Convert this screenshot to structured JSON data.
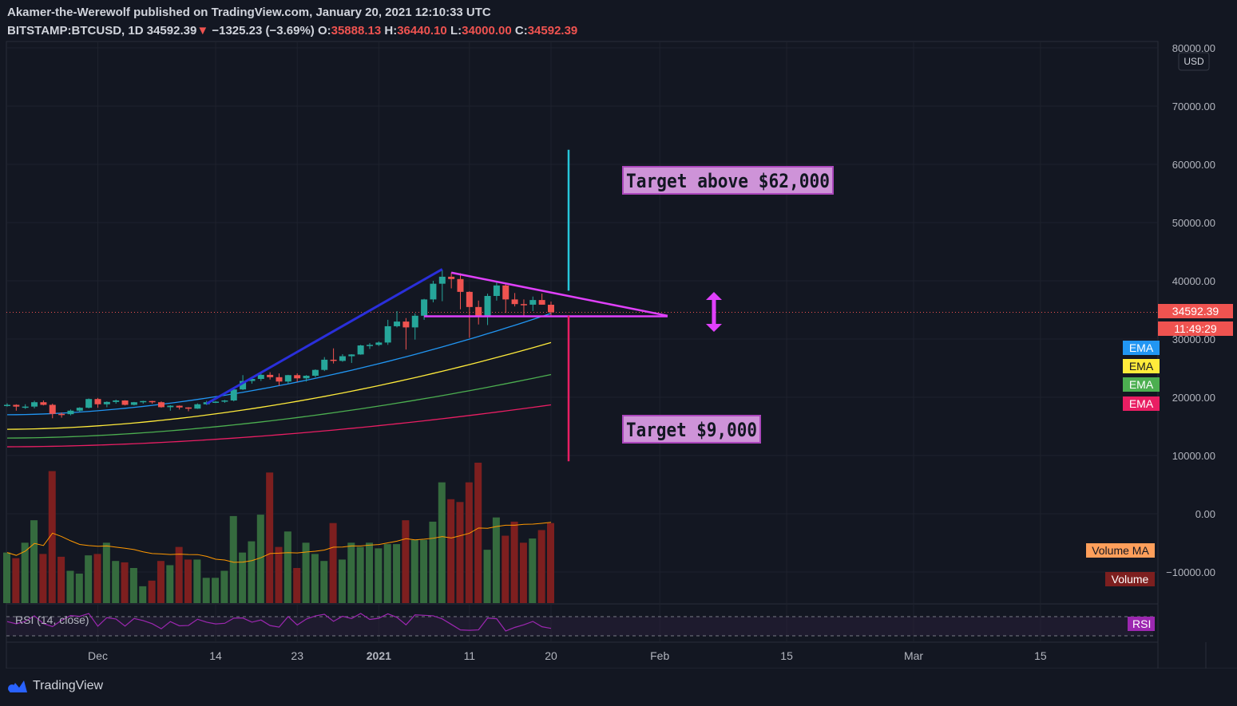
{
  "header": {
    "publisher_line": "Akamer-the-Werewolf published on TradingView.com, January 20, 2021 12:10:33 UTC",
    "symbol": "BITSTAMP:BTCUSD, 1D",
    "last": "34592.39",
    "change_arrow": "▼",
    "change": "−1325.23 (−3.69%)",
    "open_label": "O:",
    "open": "35888.13",
    "high_label": "H:",
    "high": "36440.10",
    "low_label": "L:",
    "low": "34000.00",
    "close_label": "C:",
    "close": "34592.39"
  },
  "price_axis": {
    "currency": "USD",
    "last_price_tag": "34592.39",
    "countdown_tag": "11:49:29",
    "tick_labels": [
      "80000.00",
      "70000.00",
      "60000.00",
      "50000.00",
      "40000.00",
      "30000.00",
      "20000.00",
      "10000.00",
      "0.00",
      "−10000.00"
    ]
  },
  "legend": {
    "ema_labels": [
      "EMA",
      "EMA",
      "EMA",
      "EMA"
    ],
    "volume_ma": "Volume MA",
    "volume": "Volume",
    "rsi_tag": "RSI",
    "rsi_title": "RSI (14, close)"
  },
  "time_axis": {
    "labels": [
      "Dec",
      "14",
      "23",
      "2021",
      "11",
      "20",
      "Feb",
      "15",
      "Mar",
      "15"
    ]
  },
  "annotations": {
    "target_up": "Target above $62,000",
    "target_down": "Target $9,000"
  },
  "colors": {
    "background": "#131722",
    "up": "#26a69a",
    "down": "#ef5350",
    "ema_blue": "#2196f3",
    "ema_yellow": "#ffeb3b",
    "ema_green": "#4caf50",
    "ema_red": "#e91e63",
    "triangle": "#e040fb",
    "annotation_fill": "#ce93d8"
  },
  "footer": {
    "brand": "TradingView"
  },
  "chart_data": {
    "type": "candlestick",
    "title": "BITSTAMP:BTCUSD, 1D",
    "ylabel": "USD",
    "ylim": [
      -10000,
      80000
    ],
    "x_start_date": "2020-11-21",
    "candles": [
      {
        "date": "2020-11-21",
        "o": 18600,
        "h": 18950,
        "l": 18400,
        "c": 18700
      },
      {
        "date": "2020-11-22",
        "o": 18700,
        "h": 18800,
        "l": 17700,
        "c": 18400
      },
      {
        "date": "2020-11-23",
        "o": 18400,
        "h": 18800,
        "l": 18000,
        "c": 18400
      },
      {
        "date": "2020-11-24",
        "o": 18400,
        "h": 19400,
        "l": 18100,
        "c": 19150
      },
      {
        "date": "2020-11-25",
        "o": 19150,
        "h": 19450,
        "l": 18600,
        "c": 18700
      },
      {
        "date": "2020-11-26",
        "o": 18700,
        "h": 18900,
        "l": 16400,
        "c": 17150
      },
      {
        "date": "2020-11-27",
        "o": 17150,
        "h": 17400,
        "l": 16500,
        "c": 17100
      },
      {
        "date": "2020-11-28",
        "o": 17100,
        "h": 17900,
        "l": 16900,
        "c": 17700
      },
      {
        "date": "2020-11-29",
        "o": 17700,
        "h": 18300,
        "l": 17500,
        "c": 18200
      },
      {
        "date": "2020-11-30",
        "o": 18200,
        "h": 19800,
        "l": 18100,
        "c": 19700
      },
      {
        "date": "2020-12-01",
        "o": 19700,
        "h": 19900,
        "l": 18200,
        "c": 18800
      },
      {
        "date": "2020-12-02",
        "o": 18800,
        "h": 19300,
        "l": 18300,
        "c": 19200
      },
      {
        "date": "2020-12-03",
        "o": 19200,
        "h": 19600,
        "l": 18900,
        "c": 19450
      },
      {
        "date": "2020-12-04",
        "o": 19450,
        "h": 19500,
        "l": 18600,
        "c": 18700
      },
      {
        "date": "2020-12-05",
        "o": 18700,
        "h": 19200,
        "l": 18600,
        "c": 19150
      },
      {
        "date": "2020-12-06",
        "o": 19150,
        "h": 19400,
        "l": 18900,
        "c": 19350
      },
      {
        "date": "2020-12-07",
        "o": 19350,
        "h": 19400,
        "l": 18900,
        "c": 19150
      },
      {
        "date": "2020-12-08",
        "o": 19150,
        "h": 19300,
        "l": 18200,
        "c": 18300
      },
      {
        "date": "2020-12-09",
        "o": 18300,
        "h": 18650,
        "l": 17700,
        "c": 18550
      },
      {
        "date": "2020-12-10",
        "o": 18550,
        "h": 18600,
        "l": 17900,
        "c": 18250
      },
      {
        "date": "2020-12-11",
        "o": 18250,
        "h": 18300,
        "l": 17600,
        "c": 18050
      },
      {
        "date": "2020-12-12",
        "o": 18050,
        "h": 18950,
        "l": 18000,
        "c": 18800
      },
      {
        "date": "2020-12-13",
        "o": 18800,
        "h": 19400,
        "l": 18700,
        "c": 19150
      },
      {
        "date": "2020-12-14",
        "o": 19150,
        "h": 19350,
        "l": 19000,
        "c": 19250
      },
      {
        "date": "2020-12-15",
        "o": 19250,
        "h": 19550,
        "l": 19050,
        "c": 19450
      },
      {
        "date": "2020-12-16",
        "o": 19450,
        "h": 21500,
        "l": 19300,
        "c": 21350
      },
      {
        "date": "2020-12-17",
        "o": 21350,
        "h": 23800,
        "l": 21250,
        "c": 22800
      },
      {
        "date": "2020-12-18",
        "o": 22800,
        "h": 23300,
        "l": 22350,
        "c": 23150
      },
      {
        "date": "2020-12-19",
        "o": 23150,
        "h": 24150,
        "l": 22800,
        "c": 23850
      },
      {
        "date": "2020-12-20",
        "o": 23850,
        "h": 24300,
        "l": 23050,
        "c": 23450
      },
      {
        "date": "2020-12-21",
        "o": 23450,
        "h": 24100,
        "l": 22000,
        "c": 22700
      },
      {
        "date": "2020-12-22",
        "o": 22700,
        "h": 23850,
        "l": 22350,
        "c": 23800
      },
      {
        "date": "2020-12-23",
        "o": 23800,
        "h": 24100,
        "l": 22650,
        "c": 23250
      },
      {
        "date": "2020-12-24",
        "o": 23250,
        "h": 23800,
        "l": 22700,
        "c": 23700
      },
      {
        "date": "2020-12-25",
        "o": 23700,
        "h": 24800,
        "l": 23450,
        "c": 24700
      },
      {
        "date": "2020-12-26",
        "o": 24700,
        "h": 26900,
        "l": 24500,
        "c": 26450
      },
      {
        "date": "2020-12-27",
        "o": 26450,
        "h": 28400,
        "l": 25800,
        "c": 26250
      },
      {
        "date": "2020-12-28",
        "o": 26250,
        "h": 27400,
        "l": 26100,
        "c": 27050
      },
      {
        "date": "2020-12-29",
        "o": 27050,
        "h": 27400,
        "l": 25900,
        "c": 27350
      },
      {
        "date": "2020-12-30",
        "o": 27350,
        "h": 29000,
        "l": 27300,
        "c": 28900
      },
      {
        "date": "2020-12-31",
        "o": 28900,
        "h": 29300,
        "l": 28300,
        "c": 29000
      },
      {
        "date": "2021-01-01",
        "o": 29000,
        "h": 29600,
        "l": 28800,
        "c": 29400
      },
      {
        "date": "2021-01-02",
        "o": 29400,
        "h": 33300,
        "l": 29000,
        "c": 32200
      },
      {
        "date": "2021-01-03",
        "o": 32200,
        "h": 34800,
        "l": 32000,
        "c": 33000
      },
      {
        "date": "2021-01-04",
        "o": 33000,
        "h": 33600,
        "l": 28200,
        "c": 32000
      },
      {
        "date": "2021-01-05",
        "o": 32000,
        "h": 34400,
        "l": 29900,
        "c": 34000
      },
      {
        "date": "2021-01-06",
        "o": 34000,
        "h": 36900,
        "l": 33300,
        "c": 36800
      },
      {
        "date": "2021-01-07",
        "o": 36800,
        "h": 40000,
        "l": 36300,
        "c": 39500
      },
      {
        "date": "2021-01-08",
        "o": 39500,
        "h": 41900,
        "l": 36500,
        "c": 40700
      },
      {
        "date": "2021-01-09",
        "o": 40700,
        "h": 41400,
        "l": 38700,
        "c": 40300
      },
      {
        "date": "2021-01-10",
        "o": 40300,
        "h": 41300,
        "l": 35100,
        "c": 38100
      },
      {
        "date": "2021-01-11",
        "o": 38100,
        "h": 38200,
        "l": 30200,
        "c": 35500
      },
      {
        "date": "2021-01-12",
        "o": 35500,
        "h": 36600,
        "l": 32500,
        "c": 34000
      },
      {
        "date": "2021-01-13",
        "o": 34000,
        "h": 37800,
        "l": 32400,
        "c": 37400
      },
      {
        "date": "2021-01-14",
        "o": 37400,
        "h": 39700,
        "l": 36600,
        "c": 39200
      },
      {
        "date": "2021-01-15",
        "o": 39200,
        "h": 39600,
        "l": 34500,
        "c": 36800
      },
      {
        "date": "2021-01-16",
        "o": 36800,
        "h": 37900,
        "l": 35600,
        "c": 36000
      },
      {
        "date": "2021-01-17",
        "o": 36000,
        "h": 36800,
        "l": 33900,
        "c": 35900
      },
      {
        "date": "2021-01-18",
        "o": 35900,
        "h": 37300,
        "l": 34800,
        "c": 36700
      },
      {
        "date": "2021-01-19",
        "o": 36700,
        "h": 37800,
        "l": 35900,
        "c": 35900
      },
      {
        "date": "2021-01-20",
        "o": 35888.13,
        "h": 36440.1,
        "l": 34000.0,
        "c": 34592.39
      }
    ],
    "ema_series": [
      {
        "color": "#2196f3",
        "start": 17000,
        "end": 34400
      },
      {
        "color": "#ffeb3b",
        "start": 14500,
        "end": 29400
      },
      {
        "color": "#4caf50",
        "start": 13000,
        "end": 23900
      },
      {
        "color": "#e91e63",
        "start": 11500,
        "end": 18700
      }
    ],
    "volume_relative": [
      0.36,
      0.32,
      0.43,
      0.59,
      0.35,
      0.94,
      0.33,
      0.23,
      0.21,
      0.34,
      0.35,
      0.43,
      0.3,
      0.29,
      0.25,
      0.12,
      0.16,
      0.3,
      0.27,
      0.4,
      0.31,
      0.31,
      0.18,
      0.18,
      0.23,
      0.62,
      0.36,
      0.44,
      0.63,
      0.93,
      0.4,
      0.51,
      0.25,
      0.43,
      0.35,
      0.3,
      0.57,
      0.31,
      0.43,
      0.4,
      0.43,
      0.39,
      0.42,
      0.42,
      0.59,
      0.45,
      0.45,
      0.58,
      0.86,
      0.74,
      0.72,
      0.86,
      1.0,
      0.38,
      0.61,
      0.48,
      0.58,
      0.43,
      0.46,
      0.52,
      0.57
    ],
    "annotations": [
      {
        "type": "projection_up",
        "target": 62000
      },
      {
        "type": "projection_down",
        "target": 9000
      }
    ]
  }
}
